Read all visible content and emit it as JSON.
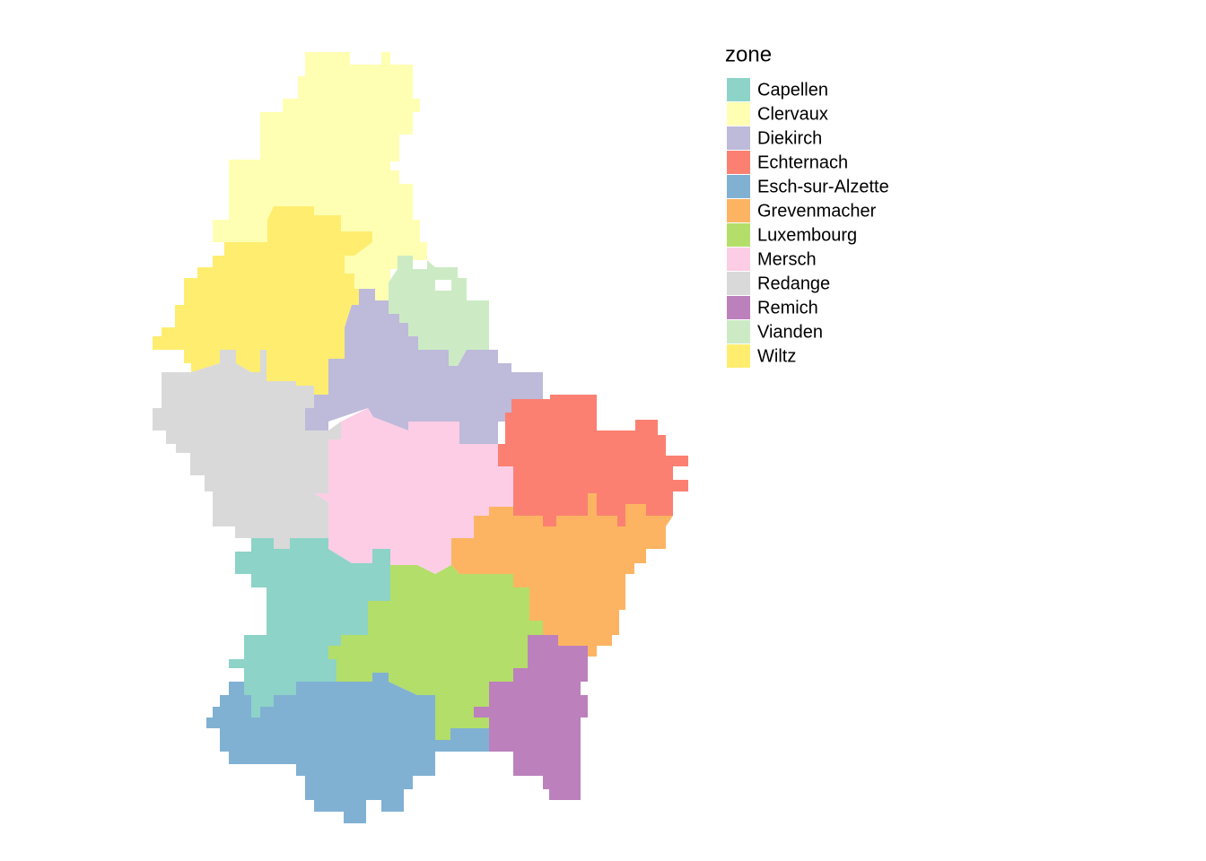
{
  "legend": {
    "title": "zone",
    "items": [
      {
        "name": "Capellen",
        "color": "#8DD3C7"
      },
      {
        "name": "Clervaux",
        "color": "#FFFFB3"
      },
      {
        "name": "Diekirch",
        "color": "#BEBADA"
      },
      {
        "name": "Echternach",
        "color": "#FB8072"
      },
      {
        "name": "Esch-sur-Alzette",
        "color": "#80B1D3"
      },
      {
        "name": "Grevenmacher",
        "color": "#FDB462"
      },
      {
        "name": "Luxembourg",
        "color": "#B3DE69"
      },
      {
        "name": "Mersch",
        "color": "#FCCDE5"
      },
      {
        "name": "Redange",
        "color": "#D9D9D9"
      },
      {
        "name": "Remich",
        "color": "#BC80BD"
      },
      {
        "name": "Vianden",
        "color": "#CCEBC5"
      },
      {
        "name": "Wiltz",
        "color": "#FFED6F"
      }
    ]
  }
}
